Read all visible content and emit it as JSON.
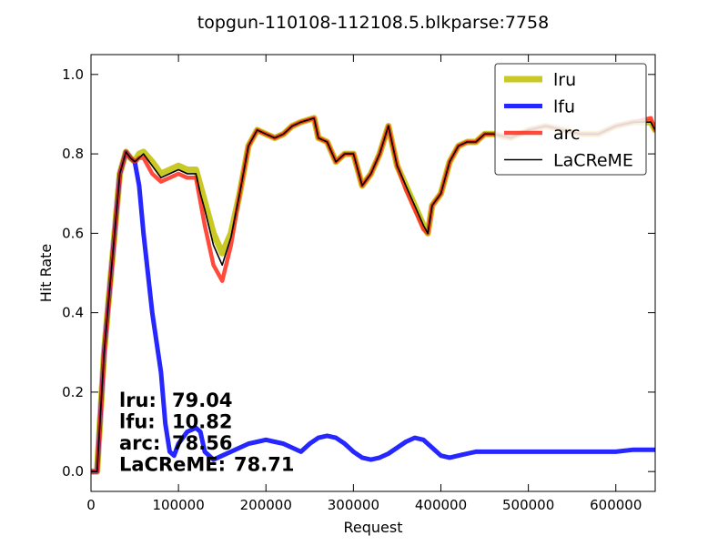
{
  "chart_data": {
    "type": "line",
    "title": "topgun-110108-112108.5.blkparse:7758",
    "xlabel": "Request",
    "ylabel": "Hit Rate",
    "xlim": [
      0,
      645000
    ],
    "ylim": [
      -0.05,
      1.05
    ],
    "xticks": [
      0,
      100000,
      200000,
      300000,
      400000,
      500000,
      600000
    ],
    "yticks": [
      0.0,
      0.2,
      0.4,
      0.6,
      0.8,
      1.0
    ],
    "xtick_labels": [
      "0",
      "100000",
      "200000",
      "300000",
      "400000",
      "500000",
      "600000"
    ],
    "ytick_labels": [
      "0.0",
      "0.2",
      "0.4",
      "0.6",
      "0.8",
      "1.0"
    ],
    "legend_position": "top-right",
    "series": [
      {
        "name": "lru",
        "color": "#bfbf00",
        "x": [
          0,
          7000,
          15000,
          25000,
          33000,
          40000,
          45000,
          50000,
          55000,
          60000,
          70000,
          80000,
          90000,
          100000,
          110000,
          120000,
          125000,
          130000,
          140000,
          150000,
          160000,
          170000,
          180000,
          190000,
          200000,
          210000,
          220000,
          230000,
          240000,
          255000,
          260000,
          270000,
          280000,
          290000,
          300000,
          310000,
          320000,
          330000,
          340000,
          350000,
          360000,
          370000,
          380000,
          385000,
          390000,
          400000,
          410000,
          420000,
          430000,
          440000,
          450000,
          460000,
          480000,
          500000,
          520000,
          540000,
          560000,
          580000,
          600000,
          620000,
          640000,
          645000
        ],
        "y": [
          0.0,
          0.0,
          0.3,
          0.55,
          0.75,
          0.805,
          0.79,
          0.78,
          0.8,
          0.805,
          0.78,
          0.75,
          0.76,
          0.77,
          0.76,
          0.76,
          0.72,
          0.68,
          0.6,
          0.55,
          0.6,
          0.7,
          0.82,
          0.86,
          0.85,
          0.84,
          0.85,
          0.87,
          0.88,
          0.89,
          0.84,
          0.83,
          0.78,
          0.8,
          0.8,
          0.72,
          0.75,
          0.8,
          0.87,
          0.77,
          0.72,
          0.67,
          0.62,
          0.6,
          0.67,
          0.7,
          0.78,
          0.82,
          0.83,
          0.83,
          0.85,
          0.85,
          0.84,
          0.86,
          0.87,
          0.86,
          0.85,
          0.85,
          0.87,
          0.88,
          0.88,
          0.86
        ]
      },
      {
        "name": "lfu",
        "color": "#1a1aff",
        "x": [
          0,
          7000,
          15000,
          25000,
          33000,
          40000,
          45000,
          50000,
          55000,
          60000,
          70000,
          80000,
          85000,
          90000,
          95000,
          100000,
          110000,
          120000,
          125000,
          130000,
          140000,
          150000,
          160000,
          170000,
          180000,
          190000,
          200000,
          210000,
          220000,
          230000,
          240000,
          250000,
          260000,
          270000,
          280000,
          290000,
          300000,
          310000,
          320000,
          330000,
          340000,
          350000,
          360000,
          370000,
          380000,
          390000,
          400000,
          410000,
          420000,
          430000,
          440000,
          450000,
          470000,
          500000,
          530000,
          560000,
          580000,
          600000,
          620000,
          645000
        ],
        "y": [
          0.0,
          0.0,
          0.3,
          0.55,
          0.75,
          0.805,
          0.79,
          0.78,
          0.72,
          0.6,
          0.4,
          0.25,
          0.12,
          0.05,
          0.04,
          0.07,
          0.1,
          0.11,
          0.1,
          0.05,
          0.03,
          0.04,
          0.05,
          0.06,
          0.07,
          0.075,
          0.08,
          0.075,
          0.07,
          0.06,
          0.05,
          0.07,
          0.085,
          0.09,
          0.085,
          0.07,
          0.05,
          0.035,
          0.03,
          0.035,
          0.045,
          0.06,
          0.075,
          0.085,
          0.08,
          0.06,
          0.04,
          0.035,
          0.04,
          0.045,
          0.05,
          0.05,
          0.05,
          0.05,
          0.05,
          0.05,
          0.05,
          0.05,
          0.055,
          0.055
        ]
      },
      {
        "name": "arc",
        "color": "#ff2a1a",
        "x": [
          0,
          7000,
          15000,
          25000,
          33000,
          40000,
          45000,
          50000,
          55000,
          60000,
          70000,
          80000,
          90000,
          100000,
          110000,
          120000,
          125000,
          130000,
          140000,
          150000,
          160000,
          170000,
          180000,
          190000,
          200000,
          210000,
          220000,
          230000,
          240000,
          255000,
          260000,
          270000,
          280000,
          290000,
          300000,
          310000,
          320000,
          330000,
          340000,
          350000,
          360000,
          370000,
          380000,
          385000,
          390000,
          400000,
          410000,
          420000,
          430000,
          440000,
          450000,
          460000,
          480000,
          500000,
          520000,
          540000,
          560000,
          580000,
          600000,
          620000,
          640000,
          645000
        ],
        "y": [
          0.0,
          0.0,
          0.3,
          0.55,
          0.75,
          0.805,
          0.79,
          0.78,
          0.79,
          0.79,
          0.75,
          0.73,
          0.74,
          0.75,
          0.74,
          0.74,
          0.68,
          0.62,
          0.52,
          0.48,
          0.57,
          0.7,
          0.82,
          0.86,
          0.85,
          0.84,
          0.85,
          0.87,
          0.88,
          0.89,
          0.84,
          0.83,
          0.78,
          0.8,
          0.8,
          0.72,
          0.75,
          0.8,
          0.87,
          0.77,
          0.71,
          0.66,
          0.61,
          0.6,
          0.67,
          0.7,
          0.78,
          0.82,
          0.83,
          0.83,
          0.85,
          0.85,
          0.84,
          0.86,
          0.87,
          0.86,
          0.85,
          0.85,
          0.87,
          0.88,
          0.89,
          0.86
        ]
      },
      {
        "name": "LaCReME",
        "color": "#000000",
        "x": [
          0,
          7000,
          15000,
          25000,
          33000,
          40000,
          45000,
          50000,
          55000,
          60000,
          70000,
          80000,
          90000,
          100000,
          110000,
          120000,
          125000,
          130000,
          140000,
          150000,
          160000,
          170000,
          180000,
          190000,
          200000,
          210000,
          220000,
          230000,
          240000,
          255000,
          260000,
          270000,
          280000,
          290000,
          300000,
          310000,
          320000,
          330000,
          340000,
          350000,
          360000,
          370000,
          380000,
          385000,
          390000,
          400000,
          410000,
          420000,
          430000,
          440000,
          450000,
          460000,
          480000,
          500000,
          520000,
          540000,
          560000,
          580000,
          600000,
          620000,
          640000,
          645000
        ],
        "y": [
          0.0,
          0.0,
          0.3,
          0.55,
          0.75,
          0.805,
          0.79,
          0.78,
          0.79,
          0.8,
          0.77,
          0.74,
          0.75,
          0.76,
          0.75,
          0.75,
          0.7,
          0.66,
          0.57,
          0.52,
          0.59,
          0.7,
          0.82,
          0.86,
          0.85,
          0.84,
          0.85,
          0.87,
          0.88,
          0.89,
          0.84,
          0.83,
          0.78,
          0.8,
          0.8,
          0.72,
          0.75,
          0.8,
          0.87,
          0.77,
          0.72,
          0.67,
          0.62,
          0.6,
          0.67,
          0.7,
          0.78,
          0.82,
          0.83,
          0.83,
          0.85,
          0.85,
          0.84,
          0.86,
          0.87,
          0.86,
          0.85,
          0.85,
          0.87,
          0.88,
          0.88,
          0.86
        ]
      }
    ],
    "annotations": [
      {
        "label": "lru:",
        "value": "79.04"
      },
      {
        "label": "lfu:",
        "value": "10.82"
      },
      {
        "label": "arc:",
        "value": "78.56"
      },
      {
        "label": "LaCReME:",
        "value": "78.71"
      }
    ]
  }
}
